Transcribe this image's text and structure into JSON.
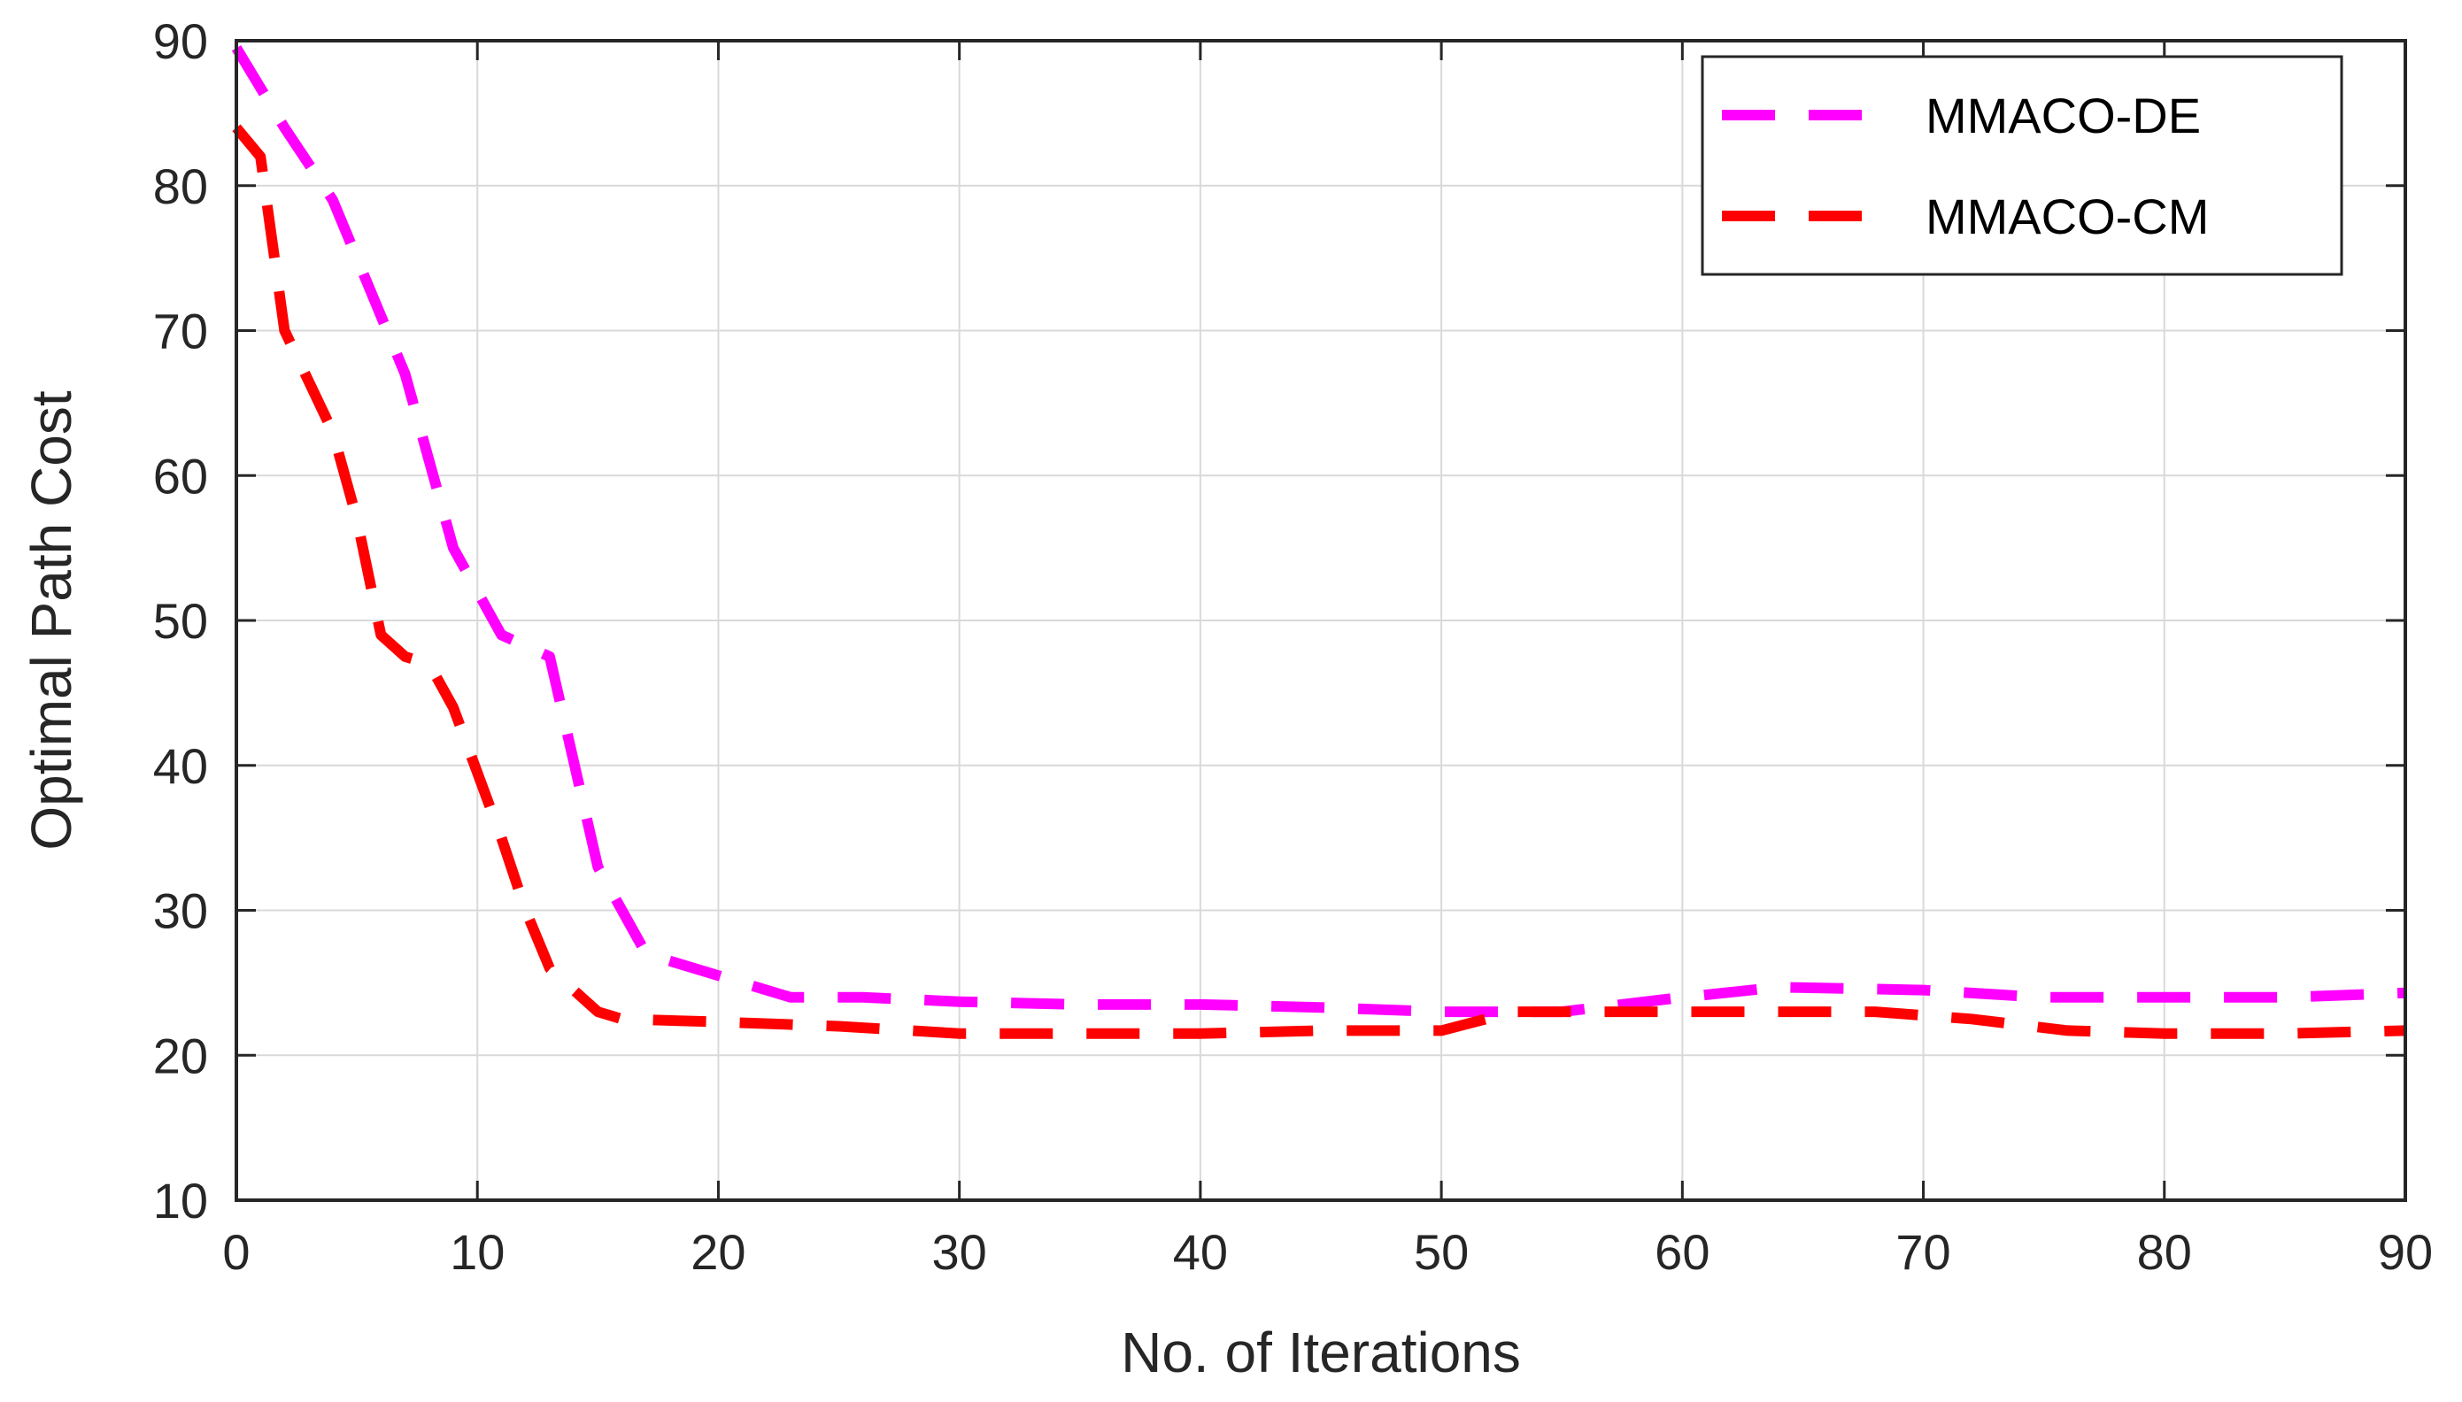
{
  "chart_data": {
    "type": "line",
    "title": "",
    "xlabel": "No. of Iterations",
    "ylabel": "Optimal Path Cost",
    "xlim": [
      0,
      90
    ],
    "ylim": [
      10,
      90
    ],
    "xticks": [
      0,
      10,
      20,
      30,
      40,
      50,
      60,
      70,
      80,
      90
    ],
    "yticks": [
      10,
      20,
      30,
      40,
      50,
      60,
      70,
      80,
      90
    ],
    "grid": true,
    "legend_position": "top-right",
    "series": [
      {
        "name": "MMACO-DE",
        "color": "#ff00ff",
        "line_style": "dashed",
        "x": [
          0,
          2,
          4,
          7,
          9,
          11,
          13,
          15,
          17,
          20,
          23,
          26,
          30,
          35,
          40,
          45,
          50,
          55,
          60,
          64,
          70,
          75,
          80,
          85,
          90
        ],
        "y": [
          89.5,
          84,
          79,
          67,
          55,
          49,
          47.5,
          33,
          27,
          25.5,
          24,
          24,
          23.7,
          23.5,
          23.5,
          23.3,
          23,
          23,
          24,
          24.7,
          24.5,
          24,
          24,
          24,
          24.3
        ]
      },
      {
        "name": "MMACO-CM",
        "color": "#ff0000",
        "line_style": "dashed",
        "x": [
          0,
          1,
          2,
          4,
          5,
          6,
          7,
          8,
          9,
          11,
          12,
          13,
          14,
          15,
          16,
          20,
          25,
          30,
          35,
          40,
          45,
          50,
          53,
          56,
          60,
          65,
          68,
          72,
          76,
          80,
          85,
          90
        ],
        "y": [
          84,
          82,
          70,
          63,
          57,
          49,
          47.5,
          47,
          44,
          35,
          30,
          26,
          24.5,
          23,
          22.5,
          22.3,
          22,
          21.5,
          21.5,
          21.5,
          21.7,
          21.7,
          23,
          23,
          23,
          23,
          23,
          22.5,
          21.7,
          21.5,
          21.5,
          21.7
        ]
      }
    ]
  }
}
